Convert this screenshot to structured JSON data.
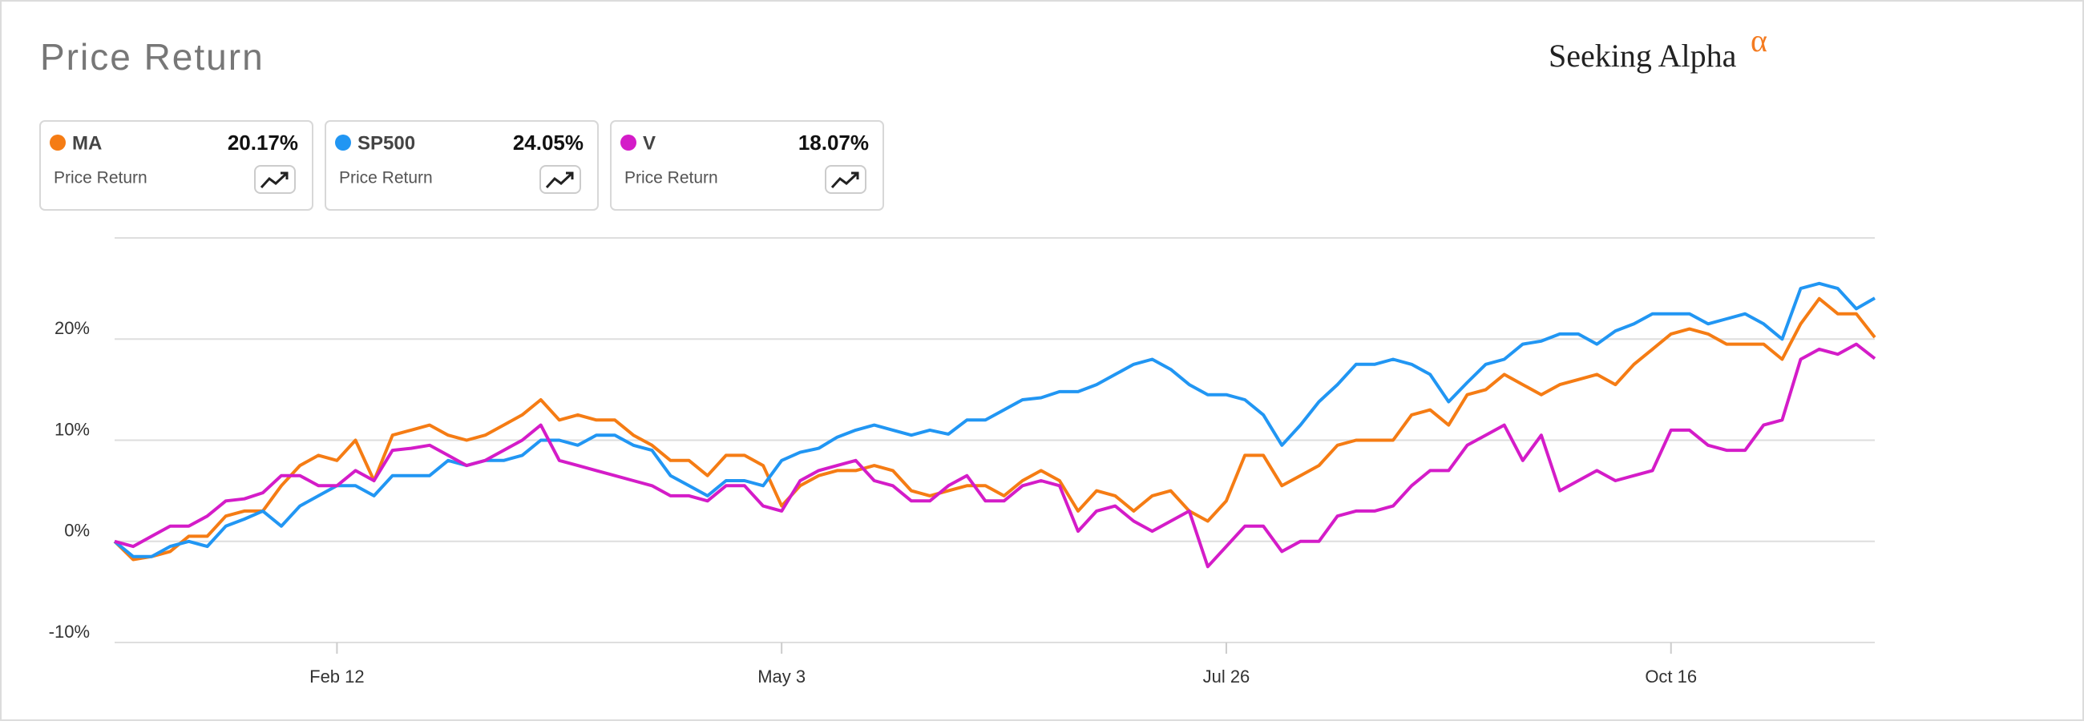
{
  "chart_data": {
    "type": "line",
    "title": "Price Return",
    "brand": "Seeking Alpha",
    "brand_mark": "α",
    "legend_caption": "Price Return",
    "categories": [
      null,
      null,
      null,
      null,
      null,
      null,
      null,
      null,
      null,
      null,
      null,
      null,
      "Feb 12",
      null,
      null,
      null,
      null,
      null,
      null,
      null,
      null,
      null,
      null,
      null,
      null,
      null,
      null,
      null,
      null,
      null,
      null,
      null,
      null,
      null,
      null,
      null,
      "May 3",
      null,
      null,
      null,
      null,
      null,
      null,
      null,
      null,
      null,
      null,
      null,
      null,
      null,
      null,
      null,
      null,
      null,
      null,
      null,
      null,
      null,
      null,
      null,
      "Jul 26",
      null,
      null,
      null,
      null,
      null,
      null,
      null,
      null,
      null,
      null,
      null,
      null,
      null,
      null,
      null,
      null,
      null,
      null,
      null,
      null,
      null,
      null,
      null,
      "Oct 16",
      null,
      null,
      null,
      null,
      null,
      null,
      null,
      null,
      null,
      null,
      null
    ],
    "series": [
      {
        "name": "MA",
        "color": "#f57c14",
        "last_label": "20.17%",
        "values": [
          0,
          -1.8,
          -1.5,
          -1,
          0.5,
          0.5,
          2.5,
          3,
          3,
          5.5,
          7.5,
          8.5,
          8,
          10,
          6,
          10.5,
          11,
          11.5,
          10.5,
          10,
          10.5,
          11.5,
          12.5,
          14,
          12,
          12.5,
          12,
          12,
          10.5,
          9.5,
          8,
          8,
          6.5,
          8.5,
          8.5,
          7.5,
          3.5,
          5.5,
          6.5,
          7,
          7,
          7.5,
          7,
          5,
          4.5,
          5,
          5.5,
          5.5,
          4.5,
          6,
          7,
          6,
          3,
          5,
          4.5,
          3,
          4.5,
          5,
          3,
          2,
          4,
          8.5,
          8.5,
          5.5,
          6.5,
          7.5,
          9.5,
          10,
          10,
          10,
          12.5,
          13,
          11.5,
          14.5,
          15,
          16.5,
          15.5,
          14.5,
          15.5,
          16,
          16.5,
          15.5,
          17.5,
          19,
          20.5,
          21,
          20.5,
          19.5,
          19.5,
          19.5,
          18,
          21.5,
          24,
          22.5,
          22.5,
          20.17
        ]
      },
      {
        "name": "SP500",
        "color": "#2196f3",
        "last_label": "24.05%",
        "values": [
          0,
          -1.5,
          -1.5,
          -0.5,
          0,
          -0.5,
          1.5,
          2.2,
          3,
          1.5,
          3.5,
          4.5,
          5.5,
          5.5,
          4.5,
          6.5,
          6.5,
          6.5,
          8,
          7.5,
          8,
          8,
          8.5,
          10,
          10,
          9.5,
          10.5,
          10.5,
          9.5,
          9,
          6.5,
          5.5,
          4.5,
          6,
          6,
          5.5,
          8,
          8.8,
          9.2,
          10.3,
          11,
          11.5,
          11,
          10.5,
          11,
          10.6,
          12,
          12,
          13,
          14,
          14.2,
          14.8,
          14.8,
          15.5,
          16.5,
          17.5,
          18,
          17,
          15.5,
          14.5,
          14.5,
          14,
          12.5,
          9.5,
          11.5,
          13.8,
          15.5,
          17.5,
          17.5,
          18,
          17.5,
          16.5,
          13.8,
          15.7,
          17.5,
          18,
          19.5,
          19.8,
          20.5,
          20.5,
          19.5,
          20.8,
          21.5,
          22.5,
          22.5,
          22.5,
          21.5,
          22,
          22.5,
          21.5,
          20,
          25,
          25.5,
          25,
          23,
          24.05
        ]
      },
      {
        "name": "V",
        "color": "#d41cc8",
        "last_label": "18.07%",
        "values": [
          0,
          -0.5,
          0.5,
          1.5,
          1.5,
          2.5,
          4,
          4.2,
          4.8,
          6.5,
          6.5,
          5.5,
          5.5,
          7,
          6,
          9,
          9.2,
          9.5,
          8.5,
          7.5,
          8,
          9,
          10,
          11.5,
          8,
          7.5,
          7,
          6.5,
          6,
          5.5,
          4.5,
          4.5,
          4,
          5.5,
          5.5,
          3.5,
          3,
          6,
          7,
          7.5,
          8,
          6,
          5.5,
          4,
          4,
          5.5,
          6.5,
          4,
          4,
          5.5,
          6,
          5.5,
          1,
          3,
          3.5,
          2,
          1,
          2,
          3,
          -2.5,
          -0.5,
          1.5,
          1.5,
          -1,
          0,
          0,
          2.5,
          3,
          3,
          3.5,
          5.5,
          7,
          7,
          9.5,
          10.5,
          11.5,
          8,
          10.5,
          5,
          6,
          7,
          6,
          6.5,
          7,
          11,
          11,
          9.5,
          9,
          9,
          11.5,
          12,
          18,
          19,
          18.5,
          19.5,
          18.07
        ]
      }
    ],
    "ylim": [
      -10,
      30
    ],
    "yticks": [
      {
        "value": -10,
        "label": "-10%"
      },
      {
        "value": 0,
        "label": "0%"
      },
      {
        "value": 10,
        "label": "10%"
      },
      {
        "value": 20,
        "label": "20%"
      }
    ],
    "grid": true
  }
}
